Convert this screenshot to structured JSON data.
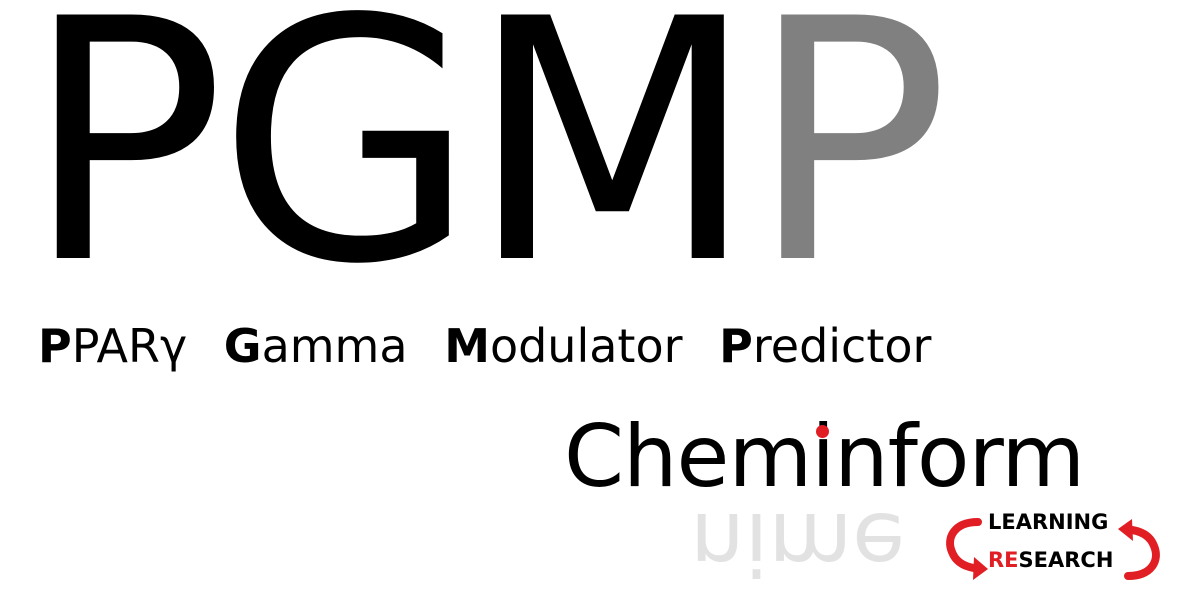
{
  "logo": {
    "acronym": [
      {
        "letter": "P",
        "color": "#000000"
      },
      {
        "letter": "G",
        "color": "#000000"
      },
      {
        "letter": "M",
        "color": "#000000"
      },
      {
        "letter": "P",
        "color": "#808080"
      }
    ],
    "expansion": [
      {
        "initial": "P",
        "rest": "PARγ"
      },
      {
        "initial": "G",
        "rest": "amma"
      },
      {
        "initial": "M",
        "rest": "odulator"
      },
      {
        "initial": "P",
        "rest": "redictor"
      }
    ]
  },
  "brand": {
    "name": "Cheminform",
    "reflection_text": "nime",
    "dot_color": "#e01e24",
    "reflection_color": "#bfbfbf",
    "accent_color": "#e01e24",
    "learning_research": {
      "line1": "LEARNING",
      "line2_prefix": "RE",
      "line2_suffix": "SEARCH"
    }
  }
}
